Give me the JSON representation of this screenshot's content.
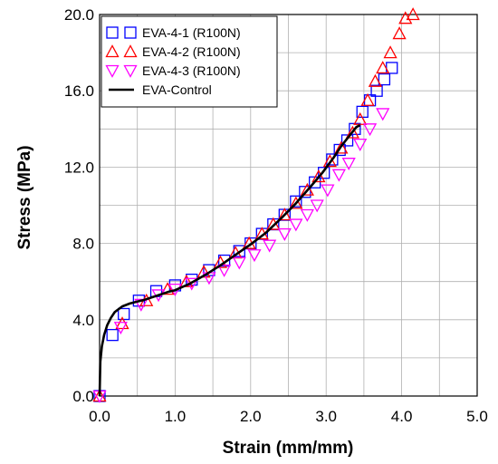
{
  "chart_data": {
    "type": "scatter",
    "xlabel": "Strain (mm/mm)",
    "ylabel": "Stress (MPa)",
    "xlim": [
      0,
      5
    ],
    "ylim": [
      0,
      20
    ],
    "x_ticks": [
      "0.0",
      "1.0",
      "2.0",
      "3.0",
      "4.0",
      "5.0"
    ],
    "y_ticks": [
      "0.0",
      "4.0",
      "8.0",
      "12.0",
      "16.0",
      "20.0"
    ],
    "grid": true,
    "legend_position": "top-left",
    "series": [
      {
        "name": "EVA-4-1 (R100N)",
        "marker": "square",
        "color": "#0000ff",
        "x": [
          0.0,
          0.17,
          0.32,
          0.52,
          0.75,
          1.0,
          1.22,
          1.45,
          1.65,
          1.85,
          2.0,
          2.15,
          2.3,
          2.45,
          2.6,
          2.72,
          2.85,
          2.97,
          3.08,
          3.18,
          3.28,
          3.38,
          3.48,
          3.58,
          3.67,
          3.77,
          3.87
        ],
        "y": [
          0.0,
          3.2,
          4.3,
          5.0,
          5.5,
          5.8,
          6.1,
          6.6,
          7.1,
          7.6,
          8.0,
          8.5,
          9.0,
          9.5,
          10.2,
          10.7,
          11.2,
          11.7,
          12.4,
          12.9,
          13.4,
          14.0,
          14.9,
          15.5,
          16.0,
          16.6,
          17.2
        ]
      },
      {
        "name": "EVA-4-2 (R100N)",
        "marker": "triangle-up",
        "color": "#ff0000",
        "x": [
          0.0,
          0.3,
          0.62,
          0.9,
          1.15,
          1.38,
          1.6,
          1.8,
          1.98,
          2.15,
          2.3,
          2.45,
          2.6,
          2.75,
          2.9,
          3.05,
          3.2,
          3.35,
          3.45,
          3.55,
          3.65,
          3.75,
          3.85,
          3.97,
          4.05,
          4.15
        ],
        "y": [
          0.0,
          3.8,
          5.0,
          5.6,
          6.0,
          6.5,
          7.0,
          7.5,
          8.0,
          8.5,
          9.0,
          9.5,
          10.1,
          10.8,
          11.5,
          12.3,
          13.0,
          13.8,
          14.5,
          15.5,
          16.5,
          17.2,
          18.0,
          19.0,
          19.8,
          20.0
        ]
      },
      {
        "name": "EVA-4-3 (R100N)",
        "marker": "triangle-down",
        "color": "#ff00ff",
        "x": [
          0.0,
          0.28,
          0.55,
          0.78,
          1.0,
          1.22,
          1.45,
          1.65,
          1.85,
          2.05,
          2.25,
          2.45,
          2.6,
          2.75,
          2.88,
          3.02,
          3.17,
          3.3,
          3.45,
          3.58,
          3.75
        ],
        "y": [
          0.0,
          3.6,
          4.8,
          5.3,
          5.6,
          5.9,
          6.2,
          6.6,
          7.0,
          7.4,
          7.9,
          8.5,
          9.0,
          9.5,
          10.0,
          10.8,
          11.6,
          12.2,
          13.2,
          14.0,
          14.8
        ]
      },
      {
        "name": "EVA-Control",
        "marker": "line",
        "color": "#000000",
        "x": [
          0.0,
          0.01,
          0.03,
          0.06,
          0.1,
          0.15,
          0.2,
          0.3,
          0.4,
          0.5,
          0.6,
          0.75,
          0.9,
          1.0,
          1.2,
          1.4,
          1.6,
          1.8,
          2.0,
          2.2,
          2.4,
          2.6,
          2.8,
          2.95,
          3.1,
          3.2,
          3.3,
          3.4,
          3.45
        ],
        "y": [
          0.0,
          1.8,
          2.6,
          3.2,
          3.7,
          4.1,
          4.4,
          4.7,
          4.85,
          4.95,
          5.05,
          5.25,
          5.45,
          5.55,
          5.9,
          6.35,
          6.85,
          7.4,
          7.95,
          8.55,
          9.3,
          10.1,
          11.0,
          11.7,
          12.5,
          13.1,
          13.6,
          14.1,
          14.2
        ]
      }
    ]
  }
}
